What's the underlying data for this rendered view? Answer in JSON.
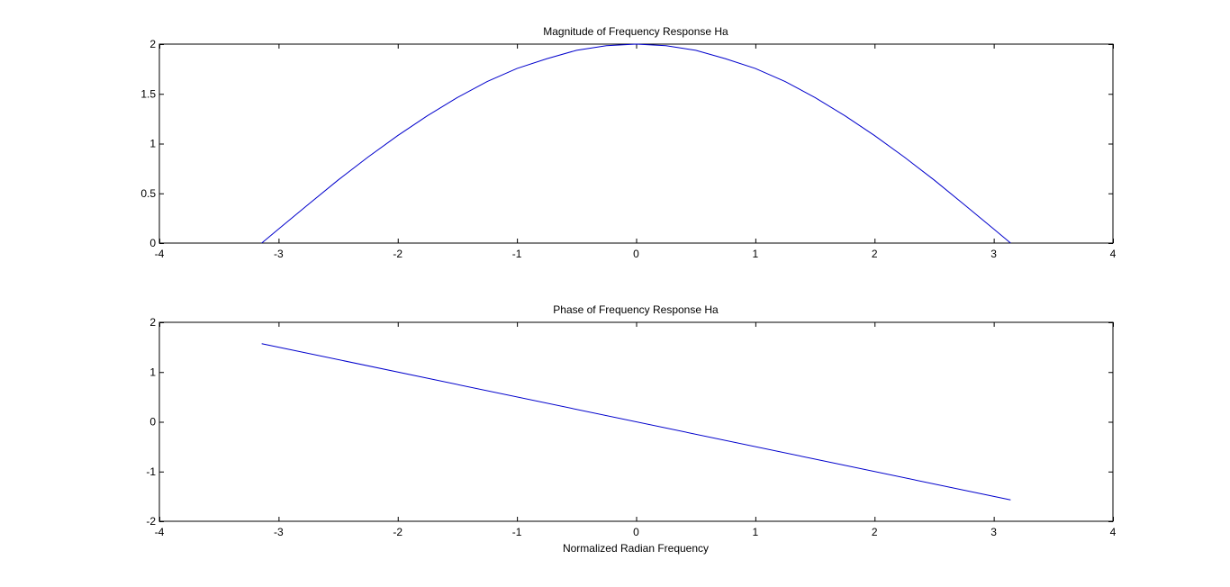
{
  "figure": {
    "background": "#ffffff",
    "axis_color": "#000000",
    "line_color": "#0000cc"
  },
  "chart_data": [
    {
      "type": "line",
      "title": "Magnitude of Frequency Response Ha",
      "xlabel": "",
      "ylabel": "",
      "xlim": [
        -4,
        4
      ],
      "ylim": [
        0,
        2
      ],
      "xticks": [
        -4,
        -3,
        -2,
        -1,
        0,
        1,
        2,
        3,
        4
      ],
      "yticks": [
        0,
        0.5,
        1,
        1.5,
        2
      ],
      "xtick_labels": [
        "-4",
        "-3",
        "-2",
        "-1",
        "0",
        "1",
        "2",
        "3",
        "4"
      ],
      "ytick_labels": [
        "0",
        "0.5",
        "1",
        "1.5",
        "2"
      ],
      "grid": false,
      "series": [
        {
          "color": "#0000cc",
          "x": [
            -3.1416,
            -3.0,
            -2.75,
            -2.5,
            -2.25,
            -2.0,
            -1.75,
            -1.5,
            -1.25,
            -1.0,
            -0.75,
            -0.5,
            -0.25,
            0.0,
            0.25,
            0.5,
            0.75,
            1.0,
            1.25,
            1.5,
            1.75,
            2.0,
            2.25,
            2.5,
            2.75,
            3.0,
            3.1416
          ],
          "y": [
            0.0,
            0.141,
            0.389,
            0.634,
            0.864,
            1.081,
            1.281,
            1.463,
            1.624,
            1.755,
            1.853,
            1.938,
            1.984,
            2.0,
            1.984,
            1.938,
            1.853,
            1.755,
            1.624,
            1.463,
            1.281,
            1.081,
            0.864,
            0.634,
            0.389,
            0.141,
            0.0
          ]
        }
      ]
    },
    {
      "type": "line",
      "title": "Phase of Frequency Response Ha",
      "xlabel": "Normalized Radian Frequency",
      "ylabel": "",
      "xlim": [
        -4,
        4
      ],
      "ylim": [
        -2,
        2
      ],
      "xticks": [
        -4,
        -3,
        -2,
        -1,
        0,
        1,
        2,
        3,
        4
      ],
      "yticks": [
        -2,
        -1,
        0,
        1,
        2
      ],
      "xtick_labels": [
        "-4",
        "-3",
        "-2",
        "-1",
        "0",
        "1",
        "2",
        "3",
        "4"
      ],
      "ytick_labels": [
        "-2",
        "-1",
        "0",
        "1",
        "2"
      ],
      "grid": false,
      "series": [
        {
          "color": "#0000cc",
          "x": [
            -3.1416,
            3.1416
          ],
          "y": [
            1.5708,
            -1.5708
          ]
        }
      ]
    }
  ]
}
